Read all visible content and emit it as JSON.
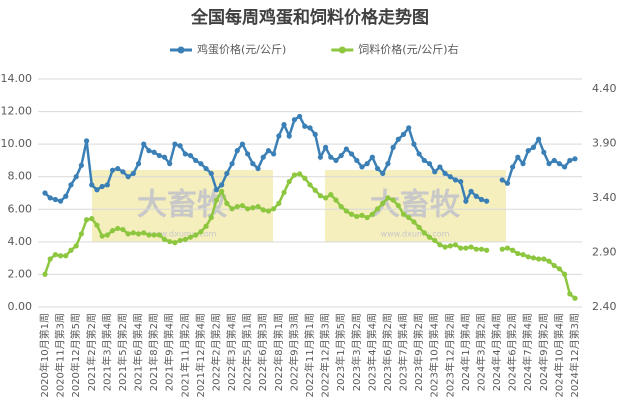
{
  "chart_data": {
    "type": "line",
    "title": "全国每周鸡蛋和饲料价格走势图",
    "watermark": "大畜牧",
    "watermark_url": "www.dxumu.com",
    "categories": [
      "2020年10月第1周",
      null,
      null,
      "2020年11月第3周",
      null,
      null,
      "2020年12月第5周",
      null,
      null,
      "2021年2月第2周",
      null,
      null,
      "2021年3月第4周",
      null,
      null,
      "2021年5月第2周",
      null,
      null,
      "2021年6月第4周",
      null,
      null,
      "2021年8月第2周",
      null,
      null,
      "2021年9月第4周",
      null,
      null,
      "2021年11月第2周",
      null,
      null,
      "2021年12月第4周",
      null,
      null,
      "2022年2月第2周",
      null,
      null,
      "2022年3月第4周",
      null,
      null,
      "2022年5月第1周",
      null,
      null,
      "2022年6月第3周",
      null,
      null,
      "2022年8月第1周",
      null,
      null,
      "2022年9月第3周",
      null,
      null,
      "2022年11月第1周",
      null,
      null,
      "2022年12月第3周",
      null,
      null,
      "2023年1月第5周",
      null,
      null,
      "2023年3月第2周",
      null,
      null,
      "2023年4月第4周",
      null,
      null,
      "2023年6月第2周",
      null,
      null,
      "2023年7月第4周",
      null,
      null,
      "2023年9月第2周",
      null,
      null,
      "2023年10月第4周",
      null,
      null,
      "2023年12月第2周",
      null,
      null,
      "2024年1月第4周",
      null,
      null,
      "2024年3月第2周",
      null,
      null,
      "2024年4月第4周",
      null,
      null,
      "2024年6月第2周",
      null,
      null,
      "2024年7月第4周",
      null,
      null,
      "2024年9月第2周",
      null,
      null,
      "2024年10月第4周",
      null,
      null,
      "2024年12月第3周"
    ],
    "series": [
      {
        "name": "鸡蛋价格(元/公斤)",
        "color": "#3a7fb5",
        "values": [
          7.0,
          6.7,
          6.6,
          6.5,
          6.8,
          7.5,
          8.0,
          8.7,
          10.2,
          7.5,
          7.2,
          7.4,
          7.5,
          8.4,
          8.5,
          8.3,
          8.0,
          8.2,
          8.8,
          10.0,
          9.6,
          9.5,
          9.3,
          9.2,
          8.8,
          10.0,
          9.9,
          9.4,
          9.3,
          9.0,
          8.8,
          8.5,
          8.2,
          7.2,
          7.5,
          8.2,
          8.8,
          9.6,
          10.0,
          9.4,
          8.8,
          8.5,
          9.2,
          9.6,
          9.4,
          10.5,
          11.2,
          10.5,
          11.5,
          11.7,
          11.1,
          11.0,
          10.6,
          9.2,
          9.8,
          9.2,
          9.0,
          9.3,
          9.7,
          9.4,
          9.0,
          8.6,
          8.8,
          9.2,
          8.5,
          8.2,
          8.8,
          9.8,
          10.3,
          10.6,
          11.0,
          10.0,
          9.4,
          9.0,
          8.8,
          8.3,
          8.6,
          8.2,
          8.0,
          7.8,
          7.7,
          6.5,
          7.1,
          6.8,
          6.6,
          6.5,
          null,
          null,
          7.8,
          7.6,
          8.6,
          9.2,
          8.8,
          9.6,
          9.8,
          10.3,
          9.5,
          8.8,
          9.0,
          8.8,
          8.6,
          9.0,
          9.1
        ]
      },
      {
        "name": "饲料价格(元/公斤)右",
        "color": "#8dc63f",
        "axis": "y2",
        "values": [
          2.7,
          2.84,
          2.88,
          2.87,
          2.87,
          2.92,
          2.96,
          3.07,
          3.2,
          3.21,
          3.15,
          3.05,
          3.06,
          3.1,
          3.12,
          3.11,
          3.07,
          3.08,
          3.07,
          3.08,
          3.06,
          3.06,
          3.06,
          3.02,
          3.0,
          2.99,
          3.01,
          3.02,
          3.04,
          3.06,
          3.09,
          3.14,
          3.22,
          3.38,
          3.46,
          3.35,
          3.3,
          3.32,
          3.33,
          3.3,
          3.31,
          3.32,
          3.29,
          3.28,
          3.3,
          3.35,
          3.45,
          3.55,
          3.61,
          3.62,
          3.58,
          3.52,
          3.47,
          3.42,
          3.4,
          3.43,
          3.38,
          3.32,
          3.28,
          3.25,
          3.23,
          3.24,
          3.22,
          3.25,
          3.3,
          3.35,
          3.4,
          3.38,
          3.33,
          3.25,
          3.22,
          3.18,
          3.13,
          3.08,
          3.04,
          3.01,
          2.97,
          2.95,
          2.96,
          2.97,
          2.94,
          2.94,
          2.95,
          2.93,
          2.93,
          2.92,
          null,
          null,
          2.93,
          2.94,
          2.92,
          2.89,
          2.88,
          2.86,
          2.85,
          2.84,
          2.84,
          2.82,
          2.78,
          2.75,
          2.7,
          2.52,
          2.48
        ]
      }
    ],
    "ylim": [
      0,
      14
    ],
    "yticks": [
      {
        "value": 0,
        "label": "0.00"
      },
      {
        "value": 2,
        "label": "2.00"
      },
      {
        "value": 4,
        "label": "4.00"
      },
      {
        "value": 6,
        "label": "6.00"
      },
      {
        "value": 8,
        "label": "8.00"
      },
      {
        "value": 10,
        "label": "10.00"
      },
      {
        "value": 12,
        "label": "12.00"
      },
      {
        "value": 14,
        "label": "14.00"
      }
    ],
    "y2lim": [
      2.4,
      4.49
    ],
    "y2ticks": [
      {
        "value": 2.4,
        "label": "2.40"
      },
      {
        "value": 2.9,
        "label": "2.90"
      },
      {
        "value": 3.4,
        "label": "3.40"
      },
      {
        "value": 3.9,
        "label": "3.90"
      },
      {
        "value": 4.4,
        "label": "4.40"
      }
    ],
    "grid": true,
    "legend": "top"
  }
}
